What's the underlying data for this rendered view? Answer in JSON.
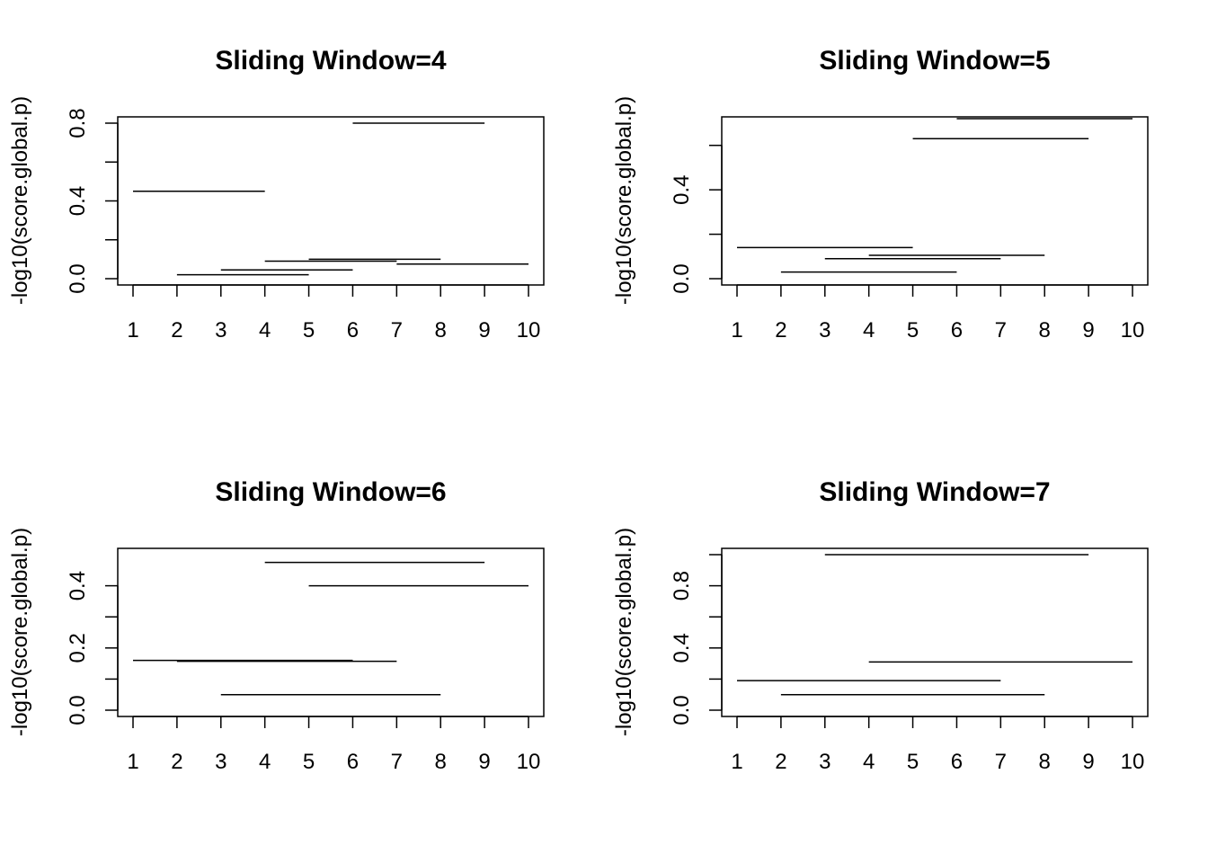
{
  "chart_data": [
    {
      "type": "segments",
      "title": "Sliding Window=4",
      "ylabel": "-log10(score.global.p)",
      "xlim": [
        1,
        10
      ],
      "ylim": [
        0,
        0.8
      ],
      "xticks": [
        1,
        2,
        3,
        4,
        5,
        6,
        7,
        8,
        9,
        10
      ],
      "yticks": [
        0.0,
        0.2,
        0.4,
        0.6,
        0.8
      ],
      "ytick_labels": [
        "0.0",
        "",
        "0.4",
        "",
        "0.8"
      ],
      "segments": [
        {
          "x_start": 1,
          "x_end": 4,
          "y": 0.45
        },
        {
          "x_start": 2,
          "x_end": 5,
          "y": 0.02
        },
        {
          "x_start": 3,
          "x_end": 6,
          "y": 0.045
        },
        {
          "x_start": 4,
          "x_end": 7,
          "y": 0.09
        },
        {
          "x_start": 5,
          "x_end": 8,
          "y": 0.1
        },
        {
          "x_start": 6,
          "x_end": 9,
          "y": 0.8
        },
        {
          "x_start": 7,
          "x_end": 10,
          "y": 0.075
        }
      ]
    },
    {
      "type": "segments",
      "title": "Sliding Window=5",
      "ylabel": "-log10(score.global.p)",
      "xlim": [
        1,
        10
      ],
      "ylim": [
        0,
        0.7
      ],
      "xticks": [
        1,
        2,
        3,
        4,
        5,
        6,
        7,
        8,
        9,
        10
      ],
      "yticks": [
        0.0,
        0.2,
        0.4,
        0.6
      ],
      "ytick_labels": [
        "0.0",
        "",
        "0.4",
        ""
      ],
      "segments": [
        {
          "x_start": 1,
          "x_end": 5,
          "y": 0.14
        },
        {
          "x_start": 2,
          "x_end": 6,
          "y": 0.03
        },
        {
          "x_start": 3,
          "x_end": 7,
          "y": 0.09
        },
        {
          "x_start": 4,
          "x_end": 8,
          "y": 0.105
        },
        {
          "x_start": 5,
          "x_end": 9,
          "y": 0.63
        },
        {
          "x_start": 6,
          "x_end": 10,
          "y": 0.72
        }
      ]
    },
    {
      "type": "segments",
      "title": "Sliding Window=6",
      "ylabel": "-log10(score.global.p)",
      "xlim": [
        1,
        10
      ],
      "ylim": [
        0,
        0.5
      ],
      "xticks": [
        1,
        2,
        3,
        4,
        5,
        6,
        7,
        8,
        9,
        10
      ],
      "yticks": [
        0.0,
        0.1,
        0.2,
        0.3,
        0.4
      ],
      "ytick_labels": [
        "0.0",
        "",
        "0.2",
        "",
        "0.4"
      ],
      "segments": [
        {
          "x_start": 1,
          "x_end": 6,
          "y": 0.16
        },
        {
          "x_start": 2,
          "x_end": 7,
          "y": 0.157
        },
        {
          "x_start": 3,
          "x_end": 8,
          "y": 0.05
        },
        {
          "x_start": 4,
          "x_end": 9,
          "y": 0.475
        },
        {
          "x_start": 5,
          "x_end": 10,
          "y": 0.4
        }
      ]
    },
    {
      "type": "segments",
      "title": "Sliding Window=7",
      "ylabel": "-log10(score.global.p)",
      "xlim": [
        1,
        10
      ],
      "ylim": [
        0,
        1.0
      ],
      "xticks": [
        1,
        2,
        3,
        4,
        5,
        6,
        7,
        8,
        9,
        10
      ],
      "yticks": [
        0.0,
        0.2,
        0.4,
        0.6,
        0.8,
        1.0
      ],
      "ytick_labels": [
        "0.0",
        "",
        "0.4",
        "",
        "0.8",
        ""
      ],
      "segments": [
        {
          "x_start": 1,
          "x_end": 7,
          "y": 0.19
        },
        {
          "x_start": 2,
          "x_end": 8,
          "y": 0.1
        },
        {
          "x_start": 3,
          "x_end": 9,
          "y": 1.0
        },
        {
          "x_start": 4,
          "x_end": 10,
          "y": 0.31
        }
      ]
    }
  ]
}
